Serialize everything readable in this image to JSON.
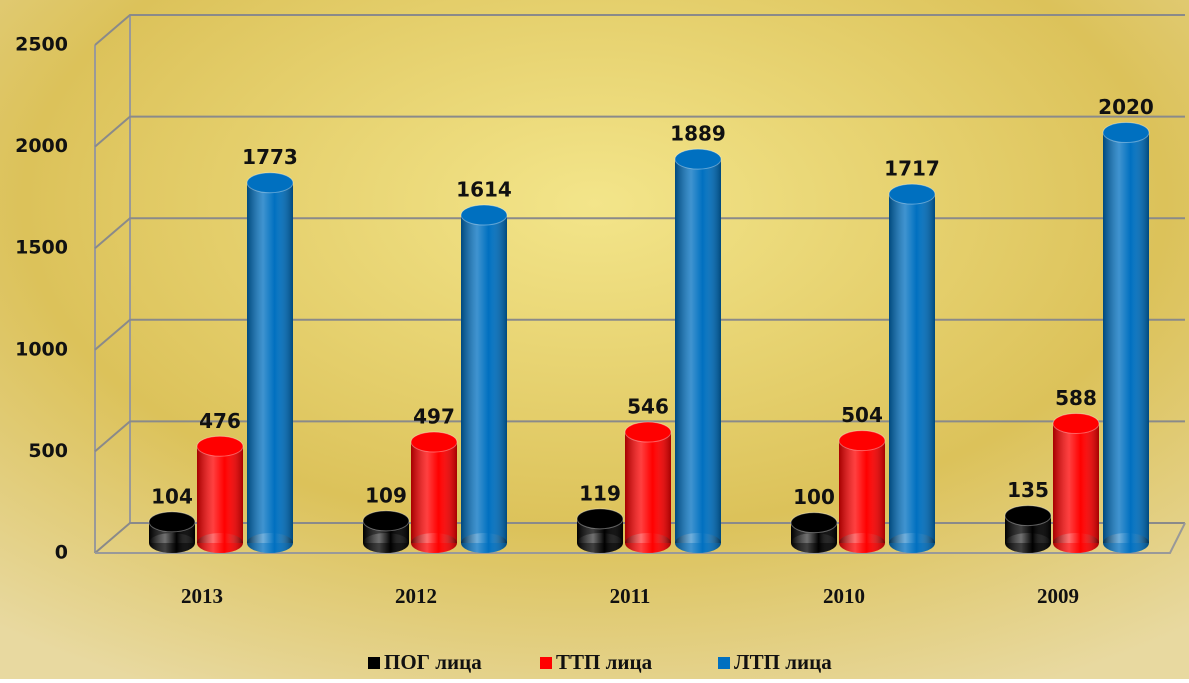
{
  "chart_data": {
    "type": "bar",
    "categories": [
      "2013",
      "2012",
      "2011",
      "2010",
      "2009"
    ],
    "series": [
      {
        "name": "ПОГ лица",
        "color": "#000000",
        "values": [
          104,
          109,
          119,
          100,
          135
        ]
      },
      {
        "name": "ТТП лица",
        "color": "#ff0000",
        "values": [
          476,
          497,
          546,
          504,
          588
        ]
      },
      {
        "name": "ЛТП лица",
        "color": "#0070c0",
        "values": [
          1773,
          1614,
          1889,
          1717,
          2020
        ]
      }
    ],
    "ylim": [
      0,
      2500
    ],
    "yticks": [
      0,
      500,
      1000,
      1500,
      2000,
      2500
    ],
    "grid": true,
    "legend": "bottom"
  }
}
